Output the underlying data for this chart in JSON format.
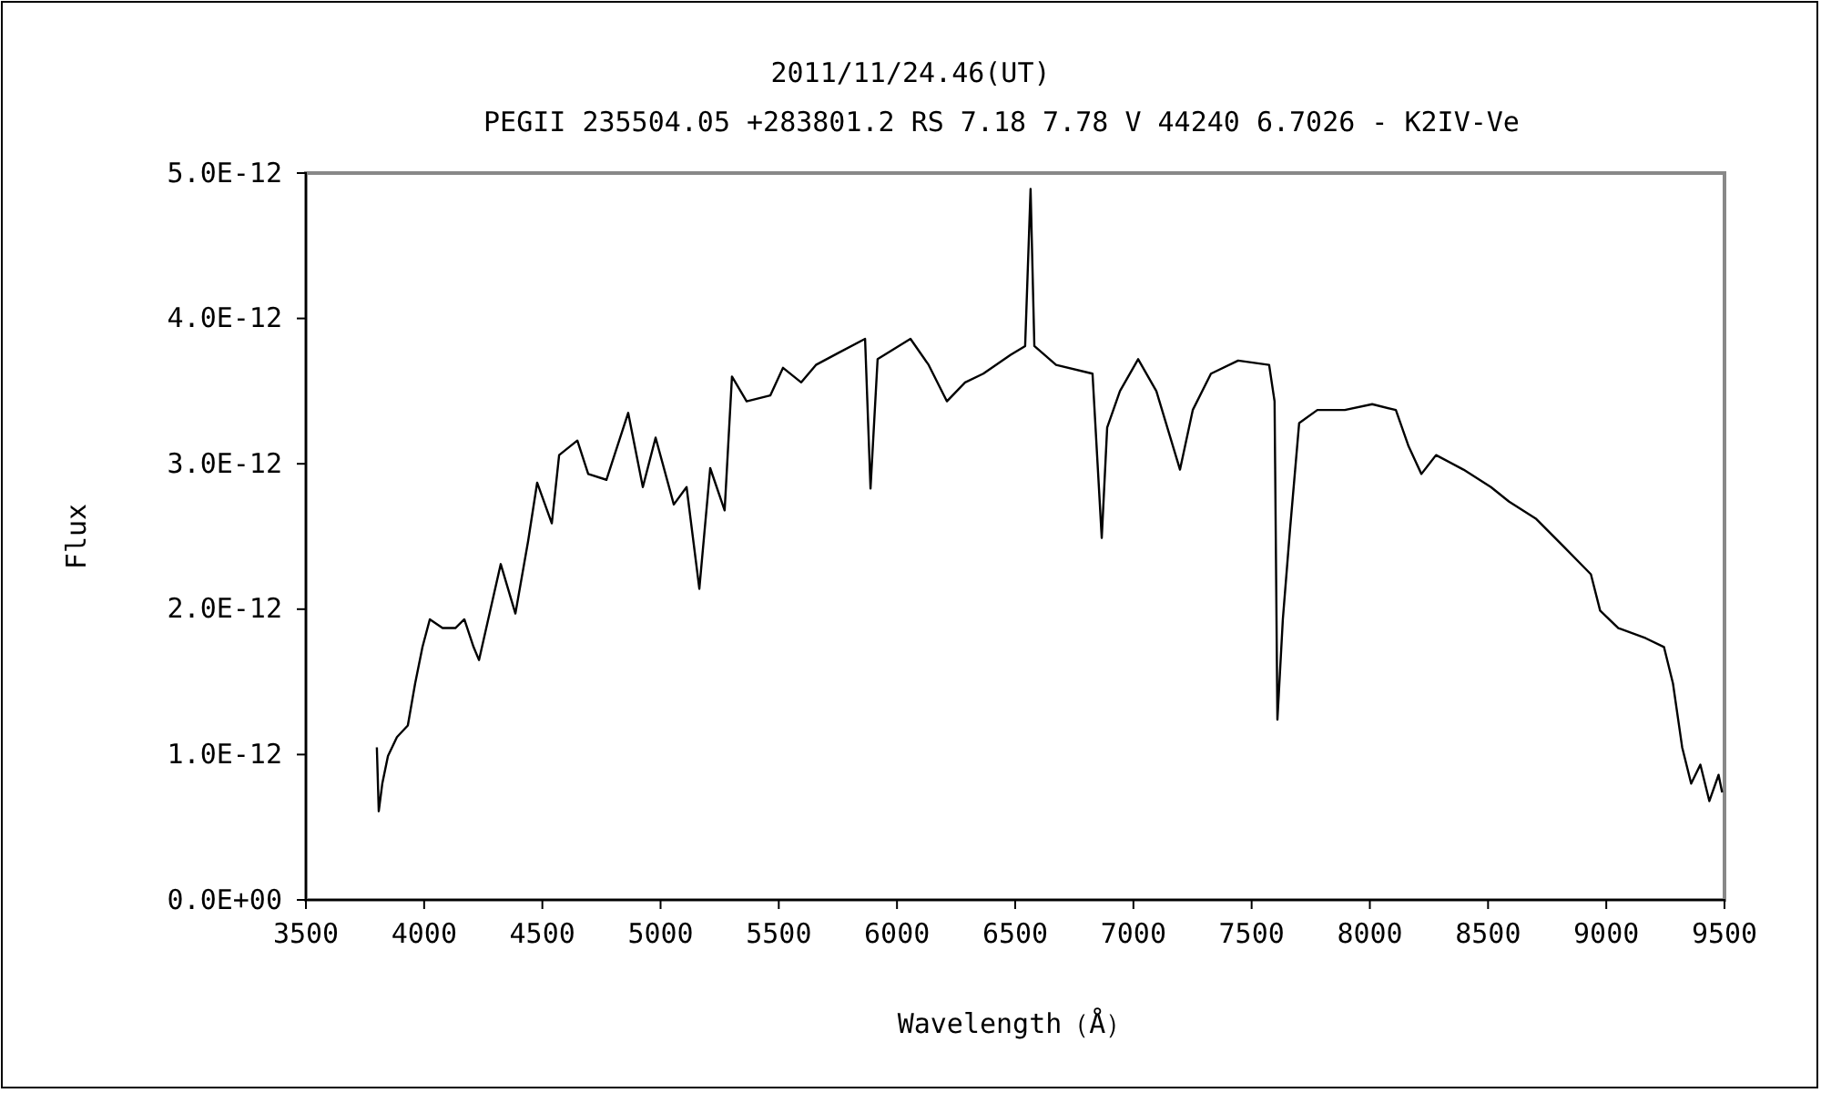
{
  "chart_data": {
    "type": "line",
    "title": "2011/11/24.46(UT)",
    "subtitle": "PEGII 235504.05 +283801.2 RS 7.18 7.78 V 44240 6.7026 - K2IV-Ve",
    "xlabel": "Wavelength（Å）",
    "ylabel": "Flux",
    "x": [
      3800,
      3808,
      3823,
      3847,
      3885,
      3931,
      3962,
      3993,
      4024,
      4078,
      4132,
      4170,
      4209,
      4232,
      4324,
      4386,
      4440,
      4478,
      4540,
      4571,
      4648,
      4694,
      4771,
      4863,
      4925,
      4979,
      5056,
      5110,
      5164,
      5210,
      5271,
      5302,
      5364,
      5464,
      5518,
      5595,
      5657,
      5749,
      5865,
      5888,
      5918,
      6057,
      6134,
      6211,
      6288,
      6365,
      6481,
      6542,
      6565,
      6581,
      6673,
      6827,
      6866,
      6889,
      6943,
      7020,
      7097,
      7197,
      7251,
      7328,
      7443,
      7574,
      7597,
      7609,
      7632,
      7663,
      7701,
      7778,
      7894,
      8010,
      8110,
      8164,
      8218,
      8280,
      8396,
      8512,
      8589,
      8704,
      8820,
      8935,
      8974,
      9051,
      9167,
      9244,
      9282,
      9321,
      9359,
      9398,
      9436,
      9475,
      9490
    ],
    "series": [
      {
        "color": "#000000",
        "values": [
          1.05e-12,
          6.1e-13,
          8e-13,
          9.9e-13,
          1.12e-12,
          1.2e-12,
          1.49e-12,
          1.74e-12,
          1.93e-12,
          1.87e-12,
          1.87e-12,
          1.93e-12,
          1.74e-12,
          1.65e-12,
          2.31e-12,
          1.97e-12,
          2.47e-12,
          2.87e-12,
          2.59e-12,
          3.06e-12,
          3.16e-12,
          2.93e-12,
          2.89e-12,
          3.35e-12,
          2.84e-12,
          3.18e-12,
          2.72e-12,
          2.84e-12,
          2.14e-12,
          2.97e-12,
          2.68e-12,
          3.6e-12,
          3.43e-12,
          3.47e-12,
          3.66e-12,
          3.56e-12,
          3.68e-12,
          3.76e-12,
          3.86e-12,
          2.83e-12,
          3.72e-12,
          3.86e-12,
          3.68e-12,
          3.43e-12,
          3.56e-12,
          3.62e-12,
          3.75e-12,
          3.81e-12,
          4.89e-12,
          3.81e-12,
          3.68e-12,
          3.62e-12,
          2.49e-12,
          3.25e-12,
          3.5e-12,
          3.72e-12,
          3.5e-12,
          2.96e-12,
          3.37e-12,
          3.62e-12,
          3.71e-12,
          3.68e-12,
          3.43e-12,
          1.24e-12,
          1.93e-12,
          2.56e-12,
          3.28e-12,
          3.37e-12,
          3.37e-12,
          3.41e-12,
          3.37e-12,
          3.12e-12,
          2.93e-12,
          3.06e-12,
          2.96e-12,
          2.84e-12,
          2.74e-12,
          2.62e-12,
          2.43e-12,
          2.24e-12,
          1.99e-12,
          1.87e-12,
          1.8e-12,
          1.74e-12,
          1.49e-12,
          1.05e-12,
          8e-13,
          9.3e-13,
          6.8e-13,
          8.6e-13,
          7.4e-13
        ]
      }
    ],
    "xlim": [
      3500,
      9500
    ],
    "xticks": [
      3500,
      4000,
      4500,
      5000,
      5500,
      6000,
      6500,
      7000,
      7500,
      8000,
      8500,
      9000,
      9500
    ],
    "ylim": [
      0,
      5e-12
    ],
    "yticks": [
      {
        "value": 0,
        "label": "0.0E+00"
      },
      {
        "value": 1e-12,
        "label": "1.0E-12"
      },
      {
        "value": 2e-12,
        "label": "2.0E-12"
      },
      {
        "value": 3e-12,
        "label": "3.0E-12"
      },
      {
        "value": 4e-12,
        "label": "4.0E-12"
      },
      {
        "value": 5e-12,
        "label": "5.0E-12"
      }
    ],
    "marker": "none",
    "line_style": "solid"
  }
}
